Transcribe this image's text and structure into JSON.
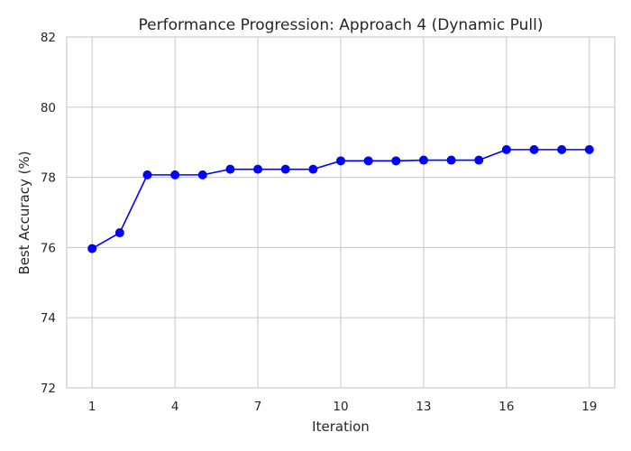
{
  "chart_data": {
    "type": "line",
    "title": "Performance Progression: Approach 4 (Dynamic Pull)",
    "xlabel": "Iteration",
    "ylabel": "Best Accuracy (%)",
    "x": [
      1,
      2,
      3,
      4,
      5,
      6,
      7,
      8,
      9,
      10,
      11,
      12,
      13,
      14,
      15,
      16,
      17,
      18,
      19
    ],
    "y": [
      75.97,
      76.42,
      78.07,
      78.07,
      78.07,
      78.23,
      78.23,
      78.23,
      78.23,
      78.47,
      78.47,
      78.47,
      78.49,
      78.49,
      78.49,
      78.79,
      78.79,
      78.79,
      78.79
    ],
    "xlim": [
      0.08,
      19.92
    ],
    "ylim": [
      72,
      82
    ],
    "xticks": [
      1,
      4,
      7,
      10,
      13,
      16,
      19
    ],
    "yticks": [
      72,
      74,
      76,
      78,
      80,
      82
    ],
    "grid": true,
    "legend": "none",
    "line_color": "#0000ff",
    "marker_color": "#0000ff",
    "grid_color": "#cccccc",
    "spine_color": "#cccccc"
  }
}
